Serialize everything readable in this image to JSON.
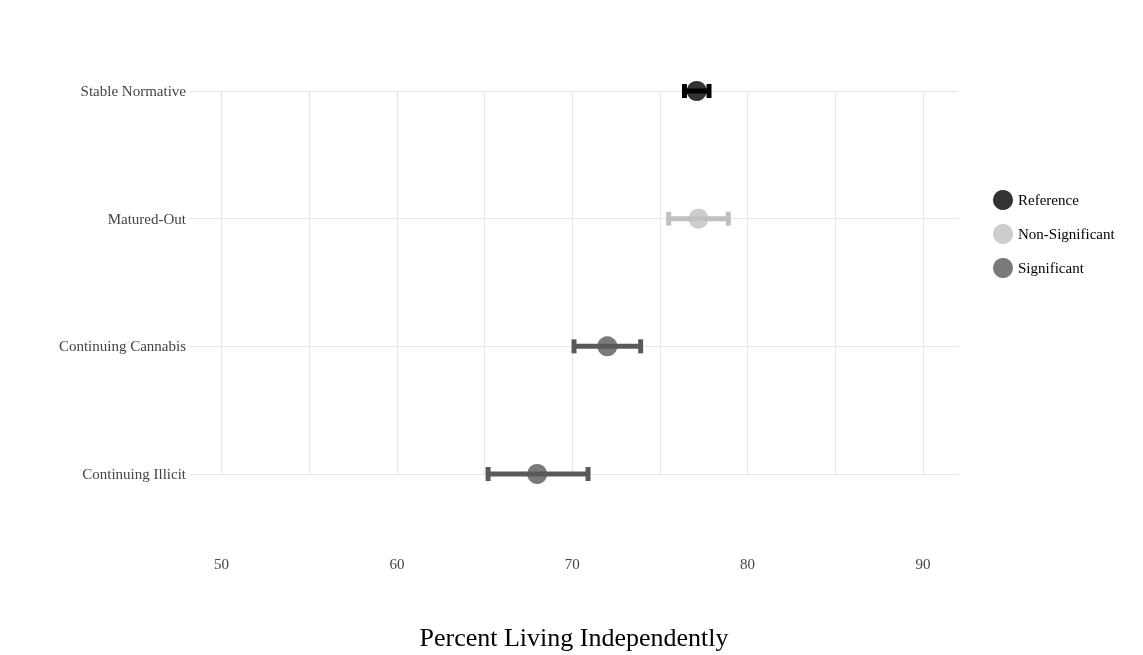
{
  "chart_data": {
    "type": "scatter",
    "orientation": "horizontal",
    "xlabel": "Percent Living Independently",
    "categories": [
      "Stable Normative",
      "Matured-Out",
      "Continuing Cannabis",
      "Continuing Illicit"
    ],
    "series": [
      {
        "name": "Reference",
        "color": "#000000",
        "values": [
          77.1,
          null,
          null,
          null
        ],
        "errors": [
          [
            76.4,
            77.8
          ],
          null,
          null,
          null
        ]
      },
      {
        "name": "Non-Significant",
        "color": "#c0c0c0",
        "values": [
          null,
          77.2,
          null,
          null
        ],
        "errors": [
          null,
          [
            75.5,
            78.9
          ],
          null,
          null
        ]
      },
      {
        "name": "Significant",
        "color": "#595959",
        "values": [
          null,
          null,
          72.0,
          68.0
        ],
        "errors": [
          null,
          null,
          [
            70.1,
            73.9
          ],
          [
            65.2,
            70.9
          ]
        ]
      }
    ],
    "xlim": [
      48.2,
      92
    ],
    "xticks": [
      50,
      {
        "value": 55,
        "label": null
      },
      60,
      {
        "value": 65,
        "label": null
      },
      70,
      {
        "value": 75,
        "label": null
      },
      80,
      {
        "value": 85,
        "label": null
      },
      90
    ],
    "grid": true,
    "legend": "right",
    "marker": "circle"
  }
}
